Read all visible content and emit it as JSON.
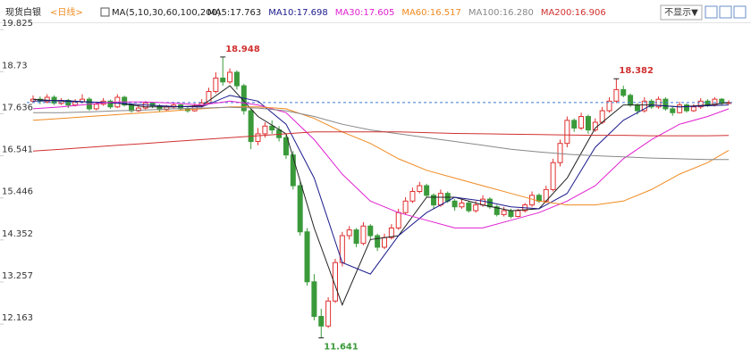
{
  "chart_data": {
    "type": "candlestick",
    "title": "现货白银",
    "subtitle": "<日线>",
    "indicator": "MA(5,10,30,60,100,200)",
    "button": "不显示▼",
    "ylim": [
      11.26,
      19.92
    ],
    "yticks": [
      19.825,
      18.73,
      17.636,
      16.541,
      15.446,
      14.352,
      13.257,
      12.163
    ],
    "grid": false,
    "up_color": "#e03030",
    "down_color": "#3a9a3a",
    "candles": [
      [
        17.8,
        17.95,
        17.75,
        17.85
      ],
      [
        17.85,
        17.92,
        17.72,
        17.8
      ],
      [
        17.78,
        17.98,
        17.74,
        17.9
      ],
      [
        17.9,
        17.95,
        17.7,
        17.75
      ],
      [
        17.74,
        17.88,
        17.7,
        17.82
      ],
      [
        17.82,
        17.86,
        17.62,
        17.7
      ],
      [
        17.7,
        17.85,
        17.66,
        17.78
      ],
      [
        17.78,
        17.98,
        17.74,
        17.85
      ],
      [
        17.85,
        17.9,
        17.55,
        17.6
      ],
      [
        17.6,
        17.78,
        17.56,
        17.72
      ],
      [
        17.72,
        17.88,
        17.68,
        17.8
      ],
      [
        17.8,
        17.84,
        17.6,
        17.65
      ],
      [
        17.65,
        17.98,
        17.62,
        17.9
      ],
      [
        17.9,
        17.94,
        17.66,
        17.7
      ],
      [
        17.7,
        17.74,
        17.5,
        17.55
      ],
      [
        17.55,
        17.7,
        17.52,
        17.62
      ],
      [
        17.62,
        17.8,
        17.58,
        17.75
      ],
      [
        17.75,
        17.78,
        17.62,
        17.68
      ],
      [
        17.68,
        17.72,
        17.52,
        17.58
      ],
      [
        17.58,
        17.7,
        17.55,
        17.65
      ],
      [
        17.65,
        17.76,
        17.6,
        17.7
      ],
      [
        17.7,
        17.74,
        17.55,
        17.6
      ],
      [
        17.6,
        17.66,
        17.5,
        17.55
      ],
      [
        17.55,
        17.74,
        17.52,
        17.68
      ],
      [
        17.68,
        17.85,
        17.64,
        17.75
      ],
      [
        17.75,
        18.15,
        17.72,
        18.05
      ],
      [
        18.05,
        18.55,
        18.0,
        18.4
      ],
      [
        18.4,
        18.948,
        18.2,
        18.3
      ],
      [
        18.3,
        18.65,
        18.25,
        18.55
      ],
      [
        18.55,
        18.6,
        18.1,
        18.2
      ],
      [
        18.2,
        18.25,
        17.45,
        17.55
      ],
      [
        17.55,
        17.6,
        16.55,
        16.75
      ],
      [
        16.75,
        17.1,
        16.65,
        16.95
      ],
      [
        16.95,
        17.25,
        16.85,
        17.15
      ],
      [
        17.15,
        17.3,
        16.95,
        17.05
      ],
      [
        17.05,
        17.15,
        16.75,
        16.85
      ],
      [
        16.85,
        16.95,
        16.3,
        16.4
      ],
      [
        16.4,
        16.5,
        15.5,
        15.6
      ],
      [
        15.6,
        15.7,
        14.3,
        14.4
      ],
      [
        14.4,
        14.5,
        13.0,
        13.1
      ],
      [
        13.1,
        13.3,
        12.1,
        12.2
      ],
      [
        12.2,
        12.4,
        11.641,
        11.95
      ],
      [
        11.95,
        12.7,
        11.9,
        12.6
      ],
      [
        12.6,
        13.7,
        12.55,
        13.6
      ],
      [
        13.6,
        14.4,
        13.5,
        14.3
      ],
      [
        14.3,
        14.55,
        14.2,
        14.45
      ],
      [
        14.45,
        14.5,
        14.0,
        14.1
      ],
      [
        14.1,
        14.65,
        14.05,
        14.55
      ],
      [
        14.55,
        14.6,
        14.2,
        14.3
      ],
      [
        14.3,
        14.35,
        13.9,
        14.0
      ],
      [
        14.0,
        14.35,
        13.95,
        14.25
      ],
      [
        14.25,
        14.6,
        14.2,
        14.5
      ],
      [
        14.5,
        15.0,
        14.45,
        14.9
      ],
      [
        14.9,
        15.3,
        14.85,
        15.2
      ],
      [
        15.2,
        15.55,
        15.15,
        15.45
      ],
      [
        15.45,
        15.7,
        15.4,
        15.6
      ],
      [
        15.6,
        15.65,
        15.3,
        15.35
      ],
      [
        15.35,
        15.4,
        15.0,
        15.1
      ],
      [
        15.1,
        15.5,
        15.05,
        15.4
      ],
      [
        15.4,
        15.45,
        15.15,
        15.2
      ],
      [
        15.2,
        15.25,
        14.95,
        15.05
      ],
      [
        15.05,
        15.25,
        15.0,
        15.15
      ],
      [
        15.15,
        15.2,
        14.9,
        14.95
      ],
      [
        14.95,
        15.2,
        14.9,
        15.1
      ],
      [
        15.1,
        15.35,
        15.05,
        15.25
      ],
      [
        15.25,
        15.3,
        15.0,
        15.05
      ],
      [
        15.05,
        15.1,
        14.8,
        14.85
      ],
      [
        14.85,
        15.05,
        14.8,
        14.95
      ],
      [
        14.95,
        15.0,
        14.75,
        14.8
      ],
      [
        14.8,
        15.0,
        14.78,
        14.95
      ],
      [
        14.95,
        15.15,
        14.9,
        15.1
      ],
      [
        15.1,
        15.45,
        15.05,
        15.35
      ],
      [
        15.35,
        15.4,
        15.15,
        15.2
      ],
      [
        15.2,
        15.6,
        15.15,
        15.5
      ],
      [
        15.5,
        16.3,
        15.45,
        16.2
      ],
      [
        16.2,
        16.8,
        16.1,
        16.7
      ],
      [
        16.7,
        17.4,
        16.6,
        17.3
      ],
      [
        17.3,
        17.35,
        17.0,
        17.1
      ],
      [
        17.1,
        17.5,
        17.05,
        17.4
      ],
      [
        17.4,
        17.45,
        16.95,
        17.05
      ],
      [
        17.05,
        17.35,
        17.0,
        17.25
      ],
      [
        17.25,
        17.65,
        17.2,
        17.55
      ],
      [
        17.55,
        17.9,
        17.5,
        17.8
      ],
      [
        17.8,
        18.382,
        17.75,
        18.1
      ],
      [
        18.1,
        18.2,
        17.9,
        17.95
      ],
      [
        17.95,
        18.0,
        17.65,
        17.7
      ],
      [
        17.7,
        17.75,
        17.45,
        17.55
      ],
      [
        17.55,
        17.9,
        17.5,
        17.8
      ],
      [
        17.8,
        17.85,
        17.6,
        17.65
      ],
      [
        17.65,
        17.92,
        17.6,
        17.85
      ],
      [
        17.85,
        17.9,
        17.55,
        17.6
      ],
      [
        17.6,
        17.65,
        17.42,
        17.5
      ],
      [
        17.5,
        17.78,
        17.48,
        17.7
      ],
      [
        17.7,
        17.74,
        17.5,
        17.55
      ],
      [
        17.55,
        17.72,
        17.52,
        17.65
      ],
      [
        17.65,
        17.88,
        17.6,
        17.8
      ],
      [
        17.8,
        17.85,
        17.65,
        17.7
      ],
      [
        17.7,
        17.9,
        17.66,
        17.85
      ],
      [
        17.85,
        17.88,
        17.7,
        17.75
      ],
      [
        17.75,
        17.82,
        17.72,
        17.763
      ]
    ],
    "annotations": [
      18.948,
      11.641,
      18.382
    ],
    "ma_index": [
      0,
      4,
      8,
      12,
      16,
      20,
      24,
      28,
      32,
      36,
      40,
      44,
      48,
      52,
      56,
      60,
      64,
      68,
      72,
      76,
      80,
      84,
      88,
      92,
      96,
      99
    ],
    "series": [
      {
        "name": "MA5:17.763",
        "color": "#222222",
        "values": [
          17.85,
          17.8,
          17.78,
          17.75,
          17.65,
          17.65,
          17.68,
          18.2,
          17.4,
          16.95,
          14.5,
          12.5,
          14.2,
          14.3,
          15.3,
          15.3,
          15.1,
          14.95,
          15.0,
          15.8,
          17.1,
          17.7,
          17.7,
          17.65,
          17.7,
          17.76
        ]
      },
      {
        "name": "MA10:17.698",
        "color": "#1a1a8c",
        "values": [
          17.8,
          17.82,
          17.78,
          17.75,
          17.7,
          17.66,
          17.65,
          17.95,
          17.8,
          17.2,
          15.8,
          13.6,
          13.3,
          14.3,
          14.9,
          15.3,
          15.2,
          15.05,
          15.0,
          15.4,
          16.6,
          17.3,
          17.7,
          17.65,
          17.68,
          17.7
        ]
      },
      {
        "name": "MA30:17.605",
        "color": "#e020d0",
        "values": [
          17.6,
          17.65,
          17.72,
          17.78,
          17.78,
          17.75,
          17.7,
          17.8,
          17.7,
          17.5,
          16.8,
          15.9,
          15.2,
          14.9,
          14.7,
          14.5,
          14.5,
          14.7,
          14.9,
          15.2,
          15.6,
          16.3,
          16.8,
          17.2,
          17.4,
          17.6
        ]
      },
      {
        "name": "MA60:16.517",
        "color": "#f08a20",
        "values": [
          17.3,
          17.35,
          17.4,
          17.45,
          17.5,
          17.55,
          17.6,
          17.65,
          17.65,
          17.6,
          17.35,
          17.0,
          16.7,
          16.3,
          16.0,
          15.8,
          15.6,
          15.4,
          15.2,
          15.1,
          15.1,
          15.2,
          15.5,
          15.9,
          16.2,
          16.52
        ]
      },
      {
        "name": "MA100:16.280",
        "color": "#888888",
        "values": [
          17.5,
          17.5,
          17.52,
          17.55,
          17.57,
          17.6,
          17.62,
          17.64,
          17.62,
          17.55,
          17.4,
          17.2,
          17.05,
          16.95,
          16.85,
          16.75,
          16.65,
          16.55,
          16.48,
          16.42,
          16.38,
          16.35,
          16.32,
          16.3,
          16.28,
          16.28
        ]
      },
      {
        "name": "MA200:16.906",
        "color": "#d03030",
        "values": [
          16.5,
          16.55,
          16.6,
          16.65,
          16.7,
          16.75,
          16.8,
          16.85,
          16.9,
          16.95,
          17.0,
          17.0,
          17.0,
          17.0,
          16.98,
          16.96,
          16.95,
          16.94,
          16.93,
          16.92,
          16.91,
          16.91,
          16.9,
          16.9,
          16.9,
          16.906
        ]
      }
    ]
  }
}
